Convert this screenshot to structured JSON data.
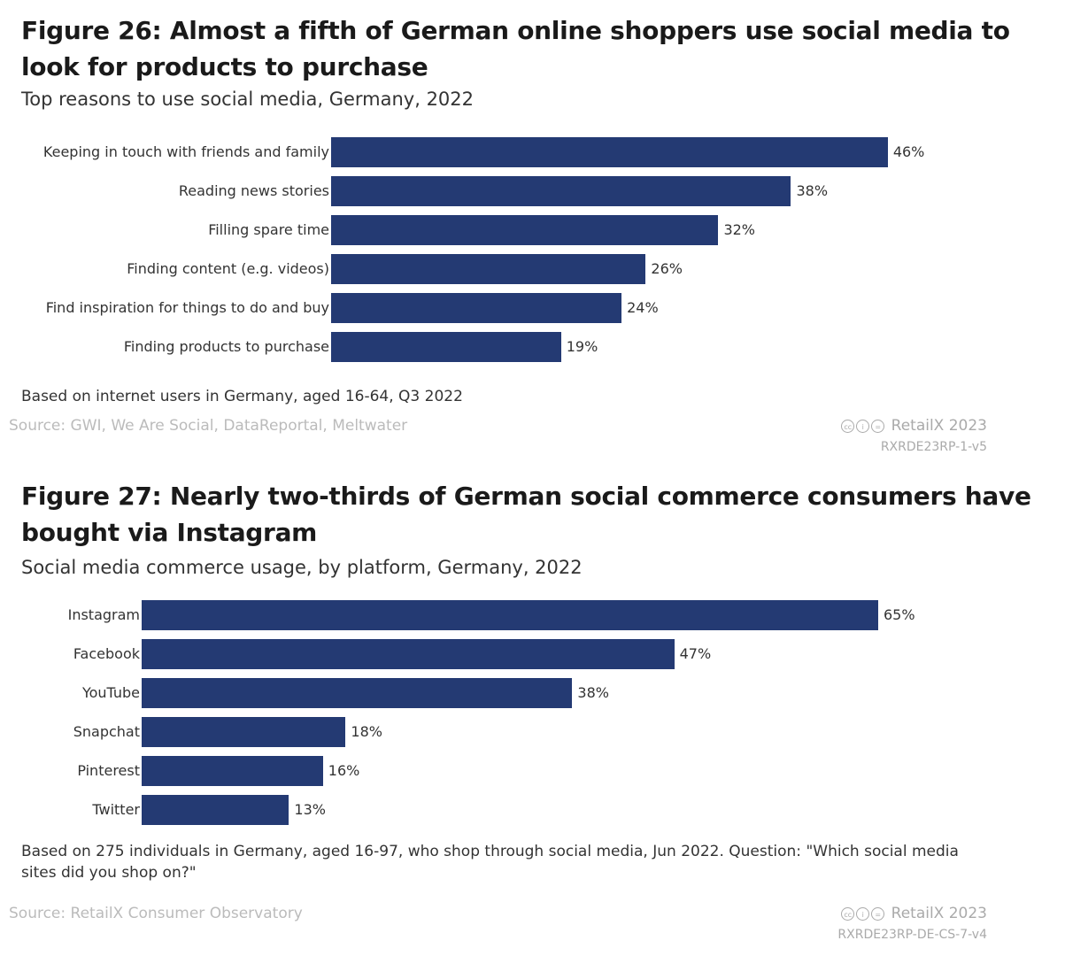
{
  "chart_data": [
    {
      "type": "bar",
      "orientation": "horizontal",
      "title": "Figure 26: Almost a fifth of German online shoppers use social media to look for products to purchase",
      "subtitle": "Top reasons to use social media, Germany, 2022",
      "categories": [
        "Keeping in touch with friends and family",
        "Reading news stories",
        "Filling spare time",
        "Finding content (e.g. videos)",
        "Find inspiration for things to do and buy",
        "Finding products to purchase"
      ],
      "values": [
        46,
        38,
        32,
        26,
        24,
        19
      ],
      "labels": [
        "46%",
        "38%",
        "32%",
        "26%",
        "24%",
        "19%"
      ],
      "note": "Based on internet users in Germany, aged 16-64, Q3 2022",
      "source": "Source: GWI, We Are Social, DataReportal, Meltwater",
      "brand": "RetailX 2023",
      "code": "RXRDE23RP-1-v5",
      "bar_color": "#243a73"
    },
    {
      "type": "bar",
      "orientation": "horizontal",
      "title": "Figure 27: Nearly two-thirds of German social commerce consumers have bought via Instagram",
      "subtitle": "Social media commerce usage, by platform, Germany, 2022",
      "categories": [
        "Instagram",
        "Facebook",
        "YouTube",
        "Snapchat",
        "Pinterest",
        "Twitter"
      ],
      "values": [
        65,
        47,
        38,
        18,
        16,
        13
      ],
      "labels": [
        "65%",
        "47%",
        "38%",
        "18%",
        "16%",
        "13%"
      ],
      "note": "Based on 275 individuals in Germany, aged 16-97, who shop through social media, Jun 2022. Question: \"Which social media sites did you shop on?\"",
      "source": "Source: RetailX Consumer Observatory",
      "brand": "RetailX 2023",
      "code": "RXRDE23RP-DE-CS-7-v4",
      "bar_color": "#243a73"
    }
  ]
}
